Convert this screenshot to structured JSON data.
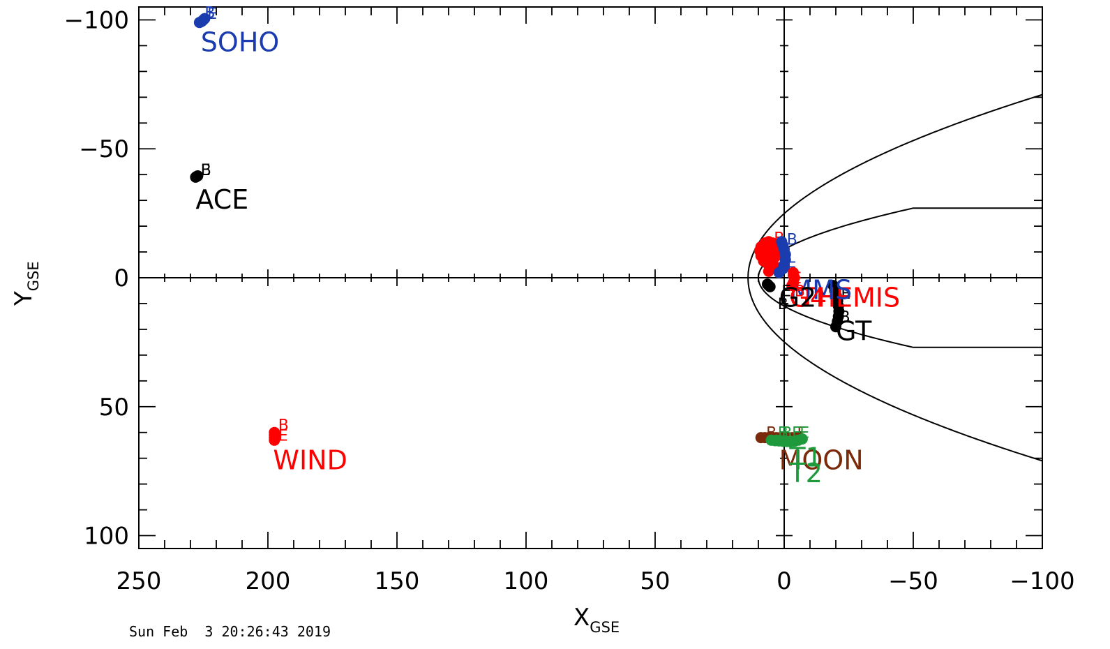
{
  "chart_data": {
    "type": "scatter",
    "timestamp": "Sun Feb  3 20:26:43 2019",
    "x_axis": {
      "label": "X",
      "label_sub": "GSE",
      "range": [
        250,
        -100
      ],
      "major_ticks": [
        250,
        200,
        150,
        100,
        50,
        0,
        -50,
        -100
      ],
      "tick_labels": [
        "250",
        "200",
        "150",
        "100",
        "50",
        "0",
        "−50",
        "−100"
      ],
      "minor_step": 10
    },
    "y_axis": {
      "label": "Y",
      "label_sub": "GSE",
      "range": [
        -105,
        105
      ],
      "major_ticks": [
        -100,
        -50,
        0,
        50,
        100
      ],
      "tick_labels": [
        "−100",
        "−50",
        "0",
        "50",
        "100"
      ],
      "minor_step": 10
    },
    "boundaries": {
      "bow_shock": {
        "nose_x": 14,
        "tail_x": -100,
        "tail_y": 71
      },
      "magnetopause": {
        "nose_x": 10,
        "flare_x": -50,
        "flank_y": 27
      }
    },
    "series": [
      {
        "name": "SOHO",
        "color": "#1a3caf",
        "label_at": [
          226,
          -91
        ],
        "points": [
          [
            224.5,
            -100.5
          ],
          [
            225,
            -100
          ],
          [
            225.5,
            -99.5
          ],
          [
            226,
            -99.2
          ],
          [
            226.5,
            -99
          ]
        ],
        "begin": [
          224.5,
          -103
        ],
        "end": [
          223.5,
          -102.5
        ]
      },
      {
        "name": "ACE",
        "color": "#000000",
        "label_at": [
          228,
          -30
        ],
        "points": [
          [
            228,
            -39
          ],
          [
            227.6,
            -39.3
          ],
          [
            227.2,
            -39.5
          ]
        ],
        "begin": [
          226,
          -42
        ],
        "end": [
          226,
          -42
        ]
      },
      {
        "name": "WIND",
        "color": "#ff0000",
        "label_at": [
          198,
          71
        ],
        "points": [
          [
            197.5,
            60
          ],
          [
            197.5,
            61
          ],
          [
            197.5,
            62
          ],
          [
            197.5,
            63
          ]
        ],
        "begin": [
          196,
          57
        ],
        "end": [
          196,
          61
        ]
      },
      {
        "name": "MOON",
        "color": "#7a2a0a",
        "label_at": [
          2,
          71
        ],
        "points": [
          [
            9,
            62
          ],
          [
            7.5,
            62
          ],
          [
            6,
            62
          ],
          [
            4.5,
            62
          ],
          [
            3,
            62
          ],
          [
            1.5,
            62
          ],
          [
            0,
            62
          ],
          [
            -1.5,
            62
          ],
          [
            -3,
            62
          ],
          [
            -4.5,
            62
          ],
          [
            -6,
            62
          ]
        ],
        "begin": [
          7,
          60
        ],
        "end": [
          -5,
          60
        ]
      },
      {
        "name": "T1",
        "color": "#1e9a3c",
        "label_at": [
          -2,
          70
        ],
        "points": [
          [
            5,
            63
          ],
          [
            3.5,
            63.2
          ],
          [
            2,
            63.3
          ],
          [
            0.5,
            63.4
          ],
          [
            -1,
            63.5
          ],
          [
            -2.5,
            63.5
          ],
          [
            -4,
            63.4
          ],
          [
            -5.5,
            63
          ],
          [
            -7,
            62.5
          ]
        ],
        "begin": [
          2.5,
          60
        ],
        "end": [
          -6,
          60
        ]
      },
      {
        "name": "T2",
        "color": "#1e9a3c",
        "label_at": [
          -2,
          76
        ],
        "points": [
          [
            3,
            63
          ],
          [
            1.5,
            63.2
          ],
          [
            0,
            63.4
          ],
          [
            -1.5,
            63.5
          ]
        ],
        "begin": [
          1,
          60
        ],
        "end": [
          -3,
          60
        ]
      },
      {
        "name": "GT",
        "color": "#000000",
        "label_at": [
          -20,
          21
        ],
        "points": [
          [
            -19,
            3
          ],
          [
            -19.6,
            5
          ],
          [
            -20.2,
            7
          ],
          [
            -20.7,
            9
          ],
          [
            -21,
            11
          ],
          [
            -21.2,
            13
          ],
          [
            -21,
            15
          ],
          [
            -20.6,
            17
          ],
          [
            -20,
            19
          ]
        ],
        "begin": [
          -21.5,
          15
        ],
        "end": [
          -22,
          6
        ]
      },
      {
        "name": "THEMIS",
        "color": "#ff0000",
        "label_at": [
          -6,
          8
        ],
        "points": [
          [
            9,
            -12
          ],
          [
            7.5,
            -13.5
          ],
          [
            6,
            -14
          ],
          [
            4.5,
            -13.5
          ],
          [
            3.5,
            -12
          ],
          [
            3,
            -10
          ],
          [
            3.5,
            -8
          ],
          [
            5,
            -6
          ],
          [
            6.5,
            -5.5
          ],
          [
            8,
            -6.5
          ],
          [
            9,
            -8.5
          ],
          [
            9.5,
            -10.5
          ],
          [
            6,
            -10
          ],
          [
            5,
            -9
          ],
          [
            7,
            -9
          ],
          [
            6,
            -2.5
          ],
          [
            3,
            -4
          ],
          [
            4.5,
            -11
          ]
        ],
        "begin": [
          4,
          -15.5
        ],
        "end": [
          3,
          -11
        ]
      },
      {
        "name": "MMS",
        "color": "#1a3caf",
        "label_at": [
          -2,
          5
        ],
        "points": [
          [
            1,
            -14
          ],
          [
            0.5,
            -12.5
          ],
          [
            0,
            -11
          ],
          [
            -0.5,
            -9
          ],
          [
            -0.5,
            -7
          ],
          [
            0,
            -5
          ],
          [
            0.5,
            -3.5
          ],
          [
            2,
            -2
          ]
        ],
        "begin": [
          -1,
          -15
        ],
        "end": [
          -1,
          -4
        ]
      },
      {
        "name": "G4",
        "color": "#ff0000",
        "label_at": [
          -2,
          8
        ],
        "points": [
          [
            -3.5,
            -2
          ],
          [
            -3.5,
            -1
          ],
          [
            -4,
            0
          ],
          [
            -3.5,
            2
          ],
          [
            -3,
            3
          ]
        ],
        "begin": [
          -4,
          5
        ],
        "end": [
          -3,
          0
        ]
      },
      {
        "name": "G2",
        "color": "#000000",
        "label_at": [
          2,
          8
        ],
        "points": [
          [
            5.5,
            3.5
          ],
          [
            6,
            3
          ],
          [
            6.5,
            2.5
          ]
        ],
        "begin": [
          2.5,
          10
        ],
        "end": [
          1,
          5
        ]
      }
    ]
  }
}
